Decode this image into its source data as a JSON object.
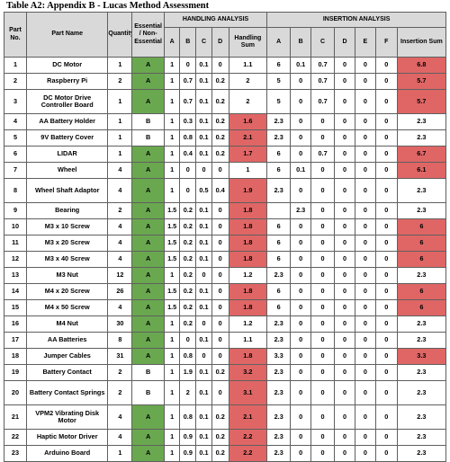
{
  "caption": "Table A2: Appendix B - Lucas Method Assessment",
  "headers": {
    "part_no": "Part No.",
    "part_name": "Part Name",
    "quantity": "Quantity",
    "essential": "Essential / Non-Essential",
    "handling_group": "HANDLING ANALYSIS",
    "insertion_group": "INSERTION ANALYSIS",
    "handling_cols": [
      "A",
      "B",
      "C",
      "D"
    ],
    "handling_sum": "Handling Sum",
    "insertion_cols": [
      "A",
      "B",
      "C",
      "D",
      "E",
      "F"
    ],
    "insertion_sum": "Insertion Sum"
  },
  "highlight_color": "#e06666",
  "essential_a_color": "#6aa84f",
  "rows": [
    {
      "no": "1",
      "name": "DC Motor",
      "qty": "1",
      "ess": "A",
      "h": [
        "1",
        "0",
        "0.1",
        "0"
      ],
      "hsum": "1.1",
      "hhl": false,
      "i": [
        "6",
        "0.1",
        "0.7",
        "0",
        "0",
        "0"
      ],
      "isum": "6.8",
      "ihl": true,
      "tall": false
    },
    {
      "no": "2",
      "name": "Raspberry Pi",
      "qty": "2",
      "ess": "A",
      "h": [
        "1",
        "0.7",
        "0.1",
        "0.2"
      ],
      "hsum": "2",
      "hhl": false,
      "i": [
        "5",
        "0",
        "0.7",
        "0",
        "0",
        "0"
      ],
      "isum": "5.7",
      "ihl": true,
      "tall": false
    },
    {
      "no": "3",
      "name": "DC Motor Drive Controller Board",
      "qty": "1",
      "ess": "A",
      "h": [
        "1",
        "0.7",
        "0.1",
        "0.2"
      ],
      "hsum": "2",
      "hhl": false,
      "i": [
        "5",
        "0",
        "0.7",
        "0",
        "0",
        "0"
      ],
      "isum": "5.7",
      "ihl": true,
      "tall": true
    },
    {
      "no": "4",
      "name": "AA Battery Holder",
      "qty": "1",
      "ess": "B",
      "h": [
        "1",
        "0.3",
        "0.1",
        "0.2"
      ],
      "hsum": "1.6",
      "hhl": true,
      "i": [
        "2.3",
        "0",
        "0",
        "0",
        "0",
        "0"
      ],
      "isum": "2.3",
      "ihl": false,
      "tall": false
    },
    {
      "no": "5",
      "name": "9V Battery Cover",
      "qty": "1",
      "ess": "B",
      "h": [
        "1",
        "0.8",
        "0.1",
        "0.2"
      ],
      "hsum": "2.1",
      "hhl": true,
      "i": [
        "2.3",
        "0",
        "0",
        "0",
        "0",
        "0"
      ],
      "isum": "2.3",
      "ihl": false,
      "tall": false
    },
    {
      "no": "6",
      "name": "LIDAR",
      "qty": "1",
      "ess": "A",
      "h": [
        "1",
        "0.4",
        "0.1",
        "0.2"
      ],
      "hsum": "1.7",
      "hhl": true,
      "i": [
        "6",
        "0",
        "0.7",
        "0",
        "0",
        "0"
      ],
      "isum": "6.7",
      "ihl": true,
      "tall": false
    },
    {
      "no": "7",
      "name": "Wheel",
      "qty": "4",
      "ess": "A",
      "h": [
        "1",
        "0",
        "0",
        "0"
      ],
      "hsum": "1",
      "hhl": false,
      "i": [
        "6",
        "0.1",
        "0",
        "0",
        "0",
        "0"
      ],
      "isum": "6.1",
      "ihl": true,
      "tall": false
    },
    {
      "no": "8",
      "name": "Wheel Shaft Adaptor",
      "qty": "4",
      "ess": "A",
      "h": [
        "1",
        "0",
        "0.5",
        "0.4"
      ],
      "hsum": "1.9",
      "hhl": true,
      "i": [
        "2.3",
        "0",
        "0",
        "0",
        "0",
        "0"
      ],
      "isum": "2.3",
      "ihl": false,
      "tall": true
    },
    {
      "no": "9",
      "name": "Bearing",
      "qty": "2",
      "ess": "A",
      "h": [
        "1.5",
        "0.2",
        "0.1",
        "0"
      ],
      "hsum": "1.8",
      "hhl": true,
      "i": [
        "",
        "2.3",
        "0",
        "0",
        "0",
        "0"
      ],
      "isum": "2.3",
      "ihl": false,
      "tall": false
    },
    {
      "no": "10",
      "name": "M3 x 10 Screw",
      "qty": "4",
      "ess": "A",
      "h": [
        "1.5",
        "0.2",
        "0.1",
        "0"
      ],
      "hsum": "1.8",
      "hhl": true,
      "i": [
        "6",
        "0",
        "0",
        "0",
        "0",
        "0"
      ],
      "isum": "6",
      "ihl": true,
      "tall": false
    },
    {
      "no": "11",
      "name": "M3 x 20 Screw",
      "qty": "4",
      "ess": "A",
      "h": [
        "1.5",
        "0.2",
        "0.1",
        "0"
      ],
      "hsum": "1.8",
      "hhl": true,
      "i": [
        "6",
        "0",
        "0",
        "0",
        "0",
        "0"
      ],
      "isum": "6",
      "ihl": true,
      "tall": false
    },
    {
      "no": "12",
      "name": "M3 x 40 Screw",
      "qty": "4",
      "ess": "A",
      "h": [
        "1.5",
        "0.2",
        "0.1",
        "0"
      ],
      "hsum": "1.8",
      "hhl": true,
      "i": [
        "6",
        "0",
        "0",
        "0",
        "0",
        "0"
      ],
      "isum": "6",
      "ihl": true,
      "tall": false
    },
    {
      "no": "13",
      "name": "M3 Nut",
      "qty": "12",
      "ess": "A",
      "h": [
        "1",
        "0.2",
        "0",
        "0"
      ],
      "hsum": "1.2",
      "hhl": false,
      "i": [
        "2.3",
        "0",
        "0",
        "0",
        "0",
        "0"
      ],
      "isum": "2.3",
      "ihl": false,
      "tall": false
    },
    {
      "no": "14",
      "name": "M4 x 20 Screw",
      "qty": "26",
      "ess": "A",
      "h": [
        "1.5",
        "0.2",
        "0.1",
        "0"
      ],
      "hsum": "1.8",
      "hhl": true,
      "i": [
        "6",
        "0",
        "0",
        "0",
        "0",
        "0"
      ],
      "isum": "6",
      "ihl": true,
      "tall": false
    },
    {
      "no": "15",
      "name": "M4 x 50 Screw",
      "qty": "4",
      "ess": "A",
      "h": [
        "1.5",
        "0.2",
        "0.1",
        "0"
      ],
      "hsum": "1.8",
      "hhl": true,
      "i": [
        "6",
        "0",
        "0",
        "0",
        "0",
        "0"
      ],
      "isum": "6",
      "ihl": true,
      "tall": false
    },
    {
      "no": "16",
      "name": "M4 Nut",
      "qty": "30",
      "ess": "A",
      "h": [
        "1",
        "0.2",
        "0",
        "0"
      ],
      "hsum": "1.2",
      "hhl": false,
      "i": [
        "2.3",
        "0",
        "0",
        "0",
        "0",
        "0"
      ],
      "isum": "2.3",
      "ihl": false,
      "tall": false
    },
    {
      "no": "17",
      "name": "AA Batteries",
      "qty": "8",
      "ess": "A",
      "h": [
        "1",
        "0",
        "0.1",
        "0"
      ],
      "hsum": "1.1",
      "hhl": false,
      "i": [
        "2.3",
        "0",
        "0",
        "0",
        "0",
        "0"
      ],
      "isum": "2.3",
      "ihl": false,
      "tall": false
    },
    {
      "no": "18",
      "name": "Jumper Cables",
      "qty": "31",
      "ess": "A",
      "h": [
        "1",
        "0.8",
        "0",
        "0"
      ],
      "hsum": "1.8",
      "hhl": true,
      "i": [
        "3.3",
        "0",
        "0",
        "0",
        "0",
        "0"
      ],
      "isum": "3.3",
      "ihl": true,
      "tall": false
    },
    {
      "no": "19",
      "name": "Battery Contact",
      "qty": "2",
      "ess": "B",
      "h": [
        "1",
        "1.9",
        "0.1",
        "0.2"
      ],
      "hsum": "3.2",
      "hhl": true,
      "i": [
        "2.3",
        "0",
        "0",
        "0",
        "0",
        "0"
      ],
      "isum": "2.3",
      "ihl": false,
      "tall": false
    },
    {
      "no": "20",
      "name": "Battery Contact Springs",
      "qty": "2",
      "ess": "B",
      "h": [
        "1",
        "2",
        "0.1",
        "0"
      ],
      "hsum": "3.1",
      "hhl": true,
      "i": [
        "2.3",
        "0",
        "0",
        "0",
        "0",
        "0"
      ],
      "isum": "2.3",
      "ihl": false,
      "tall": true
    },
    {
      "no": "21",
      "name": "VPM2 Vibrating Disk Motor",
      "qty": "4",
      "ess": "A",
      "h": [
        "1",
        "0.8",
        "0.1",
        "0.2"
      ],
      "hsum": "2.1",
      "hhl": true,
      "i": [
        "2.3",
        "0",
        "0",
        "0",
        "0",
        "0"
      ],
      "isum": "2.3",
      "ihl": false,
      "tall": true
    },
    {
      "no": "22",
      "name": "Haptic Motor Driver",
      "qty": "4",
      "ess": "A",
      "h": [
        "1",
        "0.9",
        "0.1",
        "0.2"
      ],
      "hsum": "2.2",
      "hhl": true,
      "i": [
        "2.3",
        "0",
        "0",
        "0",
        "0",
        "0"
      ],
      "isum": "2.3",
      "ihl": false,
      "tall": false
    },
    {
      "no": "23",
      "name": "Arduino Board",
      "qty": "1",
      "ess": "A",
      "h": [
        "1",
        "0.9",
        "0.1",
        "0.2"
      ],
      "hsum": "2.2",
      "hhl": true,
      "i": [
        "2.3",
        "0",
        "0",
        "0",
        "0",
        "0"
      ],
      "isum": "2.3",
      "ihl": false,
      "tall": false
    }
  ]
}
